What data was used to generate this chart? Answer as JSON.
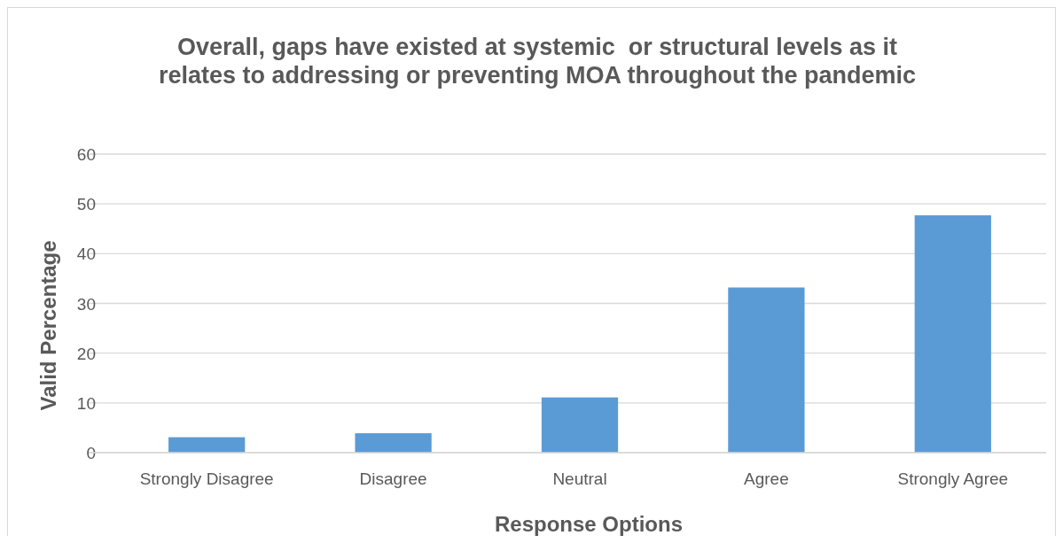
{
  "chart_data": {
    "type": "bar",
    "title": "Overall, gaps have existed at systemic  or structural levels as it relates to addressing or preventing MOA throughout the pandemic",
    "xlabel": "Response Options",
    "ylabel": "Valid Percentage",
    "categories": [
      "Strongly Disagree",
      "Disagree",
      "Neutral",
      "Agree",
      "Strongly Agree"
    ],
    "values": [
      3.1,
      3.9,
      11.1,
      33.2,
      47.7
    ],
    "color": "#5b9bd5",
    "ylim": [
      0,
      60
    ],
    "yticks": [
      0,
      10,
      20,
      30,
      40,
      50,
      60
    ],
    "grid": "y"
  }
}
